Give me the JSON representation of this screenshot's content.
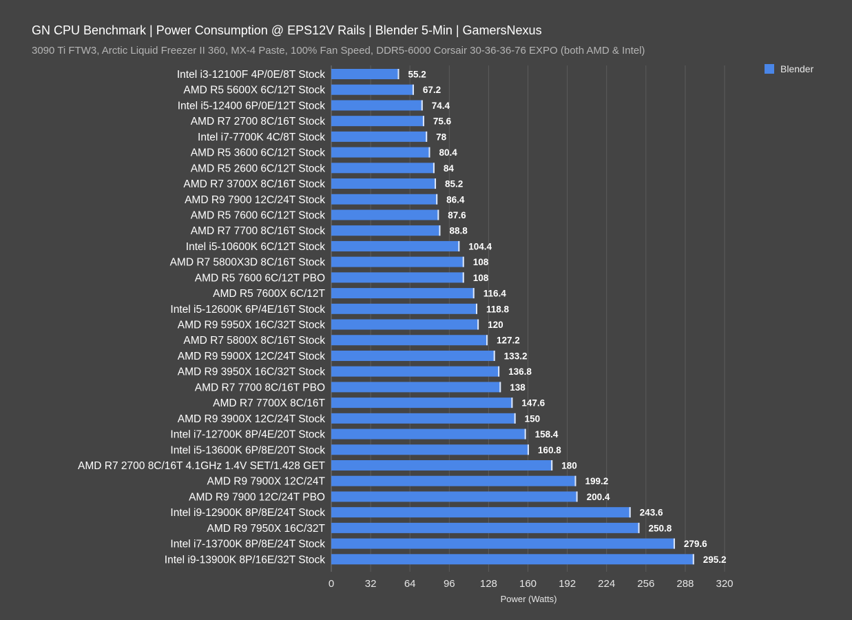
{
  "title": "GN CPU Benchmark | Power Consumption @ EPS12V Rails | Blender 5-Min | GamersNexus",
  "subtitle": "3090 Ti FTW3, Arctic Liquid Freezer II 360, MX-4 Paste, 100% Fan Speed, DDR5-6000 Corsair 30-36-36-76 EXPO (both AMD & Intel)",
  "colors": {
    "background": "#444444",
    "bar": "#4a86e8",
    "bar_cap": "#dfe8f8",
    "grid": "#5c5c5c"
  },
  "chart_data": {
    "type": "bar",
    "orientation": "horizontal",
    "title": "GN CPU Benchmark | Power Consumption @ EPS12V Rails | Blender 5-Min | GamersNexus",
    "xlabel": "Power (Watts)",
    "ylabel": "",
    "xlim": [
      0,
      320
    ],
    "xticks": [
      0,
      32,
      64,
      96,
      128,
      160,
      192,
      224,
      256,
      288,
      320
    ],
    "grid": true,
    "legend_position": "top-right",
    "categories": [
      "Intel i3-12100F 4P/0E/8T Stock",
      "AMD R5 5600X 6C/12T Stock",
      "Intel i5-12400 6P/0E/12T Stock",
      "AMD R7 2700 8C/16T Stock",
      "Intel i7-7700K 4C/8T Stock",
      "AMD R5 3600 6C/12T Stock",
      "AMD R5 2600 6C/12T Stock",
      "AMD R7 3700X 8C/16T Stock",
      "AMD R9 7900 12C/24T Stock",
      "AMD R5 7600 6C/12T Stock",
      "AMD R7 7700 8C/16T Stock",
      "Intel i5-10600K 6C/12T Stock",
      "AMD R7 5800X3D 8C/16T Stock",
      "AMD R5 7600 6C/12T PBO",
      "AMD R5 7600X 6C/12T",
      "Intel i5-12600K 6P/4E/16T Stock",
      "AMD R9 5950X 16C/32T Stock",
      "AMD R7 5800X 8C/16T Stock",
      "AMD R9 5900X 12C/24T Stock",
      "AMD R9 3950X 16C/32T Stock",
      "AMD R7 7700 8C/16T PBO",
      "AMD R7 7700X 8C/16T",
      "AMD R9 3900X 12C/24T Stock",
      "Intel i7-12700K 8P/4E/20T Stock",
      "Intel i5-13600K 6P/8E/20T Stock",
      "AMD R7 2700 8C/16T 4.1GHz 1.4V SET/1.428 GET",
      "AMD R9 7900X 12C/24T",
      "AMD R9 7900 12C/24T PBO",
      "Intel i9-12900K 8P/8E/24T Stock",
      "AMD R9 7950X 16C/32T",
      "Intel i7-13700K 8P/8E/24T Stock",
      "Intel i9-13900K 8P/16E/32T Stock"
    ],
    "series": [
      {
        "name": "Blender",
        "values": [
          55.2,
          67.2,
          74.4,
          75.6,
          78,
          80.4,
          84,
          85.2,
          86.4,
          87.6,
          88.8,
          104.4,
          108,
          108,
          116.4,
          118.8,
          120,
          127.2,
          133.2,
          136.8,
          138,
          147.6,
          150,
          158.4,
          160.8,
          180,
          199.2,
          200.4,
          243.6,
          250.8,
          279.6,
          295.2
        ],
        "labels": [
          "55.2",
          "67.2",
          "74.4",
          "75.6",
          "78",
          "80.4",
          "84",
          "85.2",
          "86.4",
          "87.6",
          "88.8",
          "104.4",
          "108",
          "108",
          "116.4",
          "118.8",
          "120",
          "127.2",
          "133.2",
          "136.8",
          "138",
          "147.6",
          "150",
          "158.4",
          "160.8",
          "180",
          "199.2",
          "200.4",
          "243.6",
          "250.8",
          "279.6",
          "295.2"
        ]
      }
    ]
  }
}
